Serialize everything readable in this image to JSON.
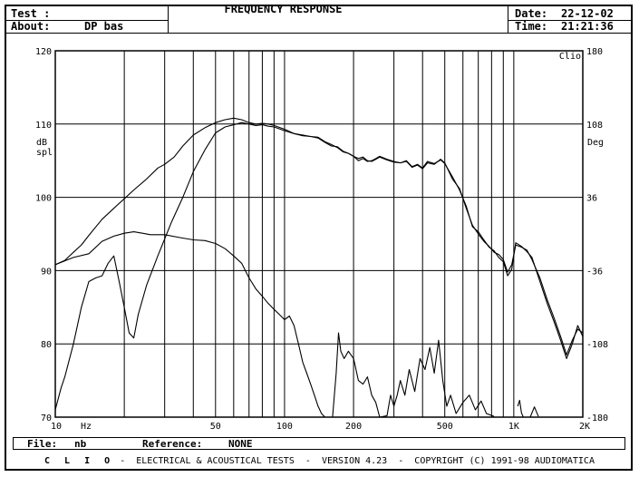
{
  "header": {
    "test_label": "Test :",
    "test_value": "",
    "about_label": "About:",
    "about_value": "DP bas",
    "title": "FREQUENCY RESPONSE",
    "date_label": "Date:",
    "date_value": "22-12-02",
    "time_label": "Time:",
    "time_value": "21:21:36"
  },
  "chart_data": {
    "type": "line",
    "title": "FREQUENCY RESPONSE",
    "x_scale": "log",
    "xlim": [
      10,
      2000
    ],
    "ylim": [
      70,
      120
    ],
    "y2lim": [
      -180,
      180
    ],
    "ylabel": "dB spl",
    "y2label": "Deg",
    "y2_corner_label": "Clio",
    "x_unit_label": "Hz",
    "grid": true,
    "x_tick_labels": [
      {
        "value": 10,
        "label": "10"
      },
      {
        "value": 50,
        "label": "50"
      },
      {
        "value": 100,
        "label": "100"
      },
      {
        "value": 200,
        "label": "200"
      },
      {
        "value": 500,
        "label": "500"
      },
      {
        "value": 1000,
        "label": "1K"
      },
      {
        "value": 2000,
        "label": "2K"
      }
    ],
    "y_tick_labels": [
      "70",
      "80",
      "90",
      "100",
      "110",
      "120"
    ],
    "y2_tick_labels": [
      "-180",
      "-108",
      "-36",
      "36",
      "108",
      "180"
    ],
    "series": [
      {
        "axis": "left",
        "points": [
          [
            10,
            90.8
          ],
          [
            11,
            91.4
          ],
          [
            12,
            92.5
          ],
          [
            13,
            93.5
          ],
          [
            14,
            94.8
          ],
          [
            16,
            97
          ],
          [
            18,
            98.5
          ],
          [
            20,
            99.8
          ],
          [
            22,
            101
          ],
          [
            25,
            102.5
          ],
          [
            28,
            104
          ],
          [
            30,
            104.5
          ],
          [
            33,
            105.5
          ],
          [
            36,
            107
          ],
          [
            40,
            108.5
          ],
          [
            45,
            109.5
          ],
          [
            50,
            110.2
          ],
          [
            55,
            110.6
          ],
          [
            60,
            110.8
          ],
          [
            65,
            110.6
          ],
          [
            70,
            110.2
          ],
          [
            75,
            110
          ],
          [
            80,
            110.1
          ],
          [
            85,
            110
          ],
          [
            90,
            109.8
          ],
          [
            100,
            109.3
          ],
          [
            110,
            108.7
          ],
          [
            120,
            108.4
          ],
          [
            130,
            108.3
          ],
          [
            140,
            108.1
          ],
          [
            150,
            107.5
          ],
          [
            160,
            107
          ],
          [
            170,
            106.9
          ],
          [
            180,
            106.3
          ],
          [
            190,
            106
          ],
          [
            200,
            105.6
          ],
          [
            210,
            105.3
          ],
          [
            220,
            105.5
          ],
          [
            230,
            105
          ],
          [
            240,
            104.9
          ],
          [
            250,
            105.2
          ],
          [
            260,
            105.5
          ],
          [
            280,
            105.1
          ],
          [
            300,
            104.8
          ],
          [
            320,
            104.7
          ],
          [
            340,
            104.9
          ],
          [
            360,
            104.1
          ],
          [
            380,
            104.4
          ],
          [
            400,
            103.9
          ],
          [
            420,
            104.7
          ],
          [
            450,
            104.5
          ],
          [
            480,
            105.2
          ],
          [
            500,
            104.7
          ],
          [
            540,
            102.5
          ],
          [
            580,
            101.2
          ],
          [
            620,
            98.5
          ],
          [
            660,
            96.2
          ],
          [
            700,
            95
          ],
          [
            740,
            94
          ],
          [
            780,
            93.3
          ],
          [
            820,
            92.5
          ],
          [
            860,
            92.2
          ],
          [
            900,
            91.5
          ],
          [
            940,
            89.8
          ],
          [
            980,
            90.8
          ],
          [
            1020,
            93.5
          ],
          [
            1080,
            93.2
          ],
          [
            1140,
            92.8
          ],
          [
            1200,
            91.5
          ],
          [
            1300,
            89
          ],
          [
            1400,
            86
          ],
          [
            1500,
            83.5
          ],
          [
            1600,
            81
          ],
          [
            1700,
            78.5
          ],
          [
            1800,
            80.5
          ],
          [
            1900,
            82
          ],
          [
            2000,
            81.5
          ]
        ]
      },
      {
        "axis": "left",
        "points": [
          [
            10,
            71
          ],
          [
            10.6,
            74
          ],
          [
            11,
            75.5
          ],
          [
            12,
            80
          ],
          [
            13,
            85
          ],
          [
            14,
            88.5
          ],
          [
            15,
            89
          ],
          [
            16,
            89.3
          ],
          [
            17,
            91
          ],
          [
            18,
            92
          ],
          [
            19,
            88.5
          ],
          [
            20,
            85
          ],
          [
            21,
            81.5
          ],
          [
            22,
            80.8
          ],
          [
            23,
            84
          ],
          [
            25,
            88
          ],
          [
            28,
            92
          ],
          [
            32,
            96.5
          ],
          [
            36,
            100
          ],
          [
            40,
            103.5
          ],
          [
            45,
            106.5
          ],
          [
            50,
            108.8
          ],
          [
            55,
            109.6
          ],
          [
            60,
            109.9
          ],
          [
            65,
            110.2
          ],
          [
            70,
            110
          ],
          [
            75,
            109.8
          ],
          [
            80,
            109.9
          ],
          [
            85,
            109.7
          ],
          [
            90,
            109.6
          ],
          [
            100,
            109.1
          ],
          [
            110,
            108.7
          ],
          [
            120,
            108.5
          ],
          [
            130,
            108.3
          ],
          [
            140,
            108.2
          ],
          [
            150,
            107.6
          ],
          [
            160,
            107.2
          ],
          [
            170,
            106.8
          ],
          [
            180,
            106.2
          ],
          [
            190,
            106
          ],
          [
            200,
            105.6
          ],
          [
            210,
            105
          ],
          [
            220,
            105.3
          ],
          [
            230,
            104.9
          ],
          [
            240,
            105
          ],
          [
            250,
            105.3
          ],
          [
            260,
            105.6
          ],
          [
            280,
            105.2
          ],
          [
            300,
            104.9
          ],
          [
            320,
            104.7
          ],
          [
            340,
            105
          ],
          [
            360,
            104.2
          ],
          [
            380,
            104.5
          ],
          [
            400,
            104
          ],
          [
            420,
            104.9
          ],
          [
            450,
            104.6
          ],
          [
            480,
            105.1
          ],
          [
            500,
            104.6
          ],
          [
            540,
            102.8
          ],
          [
            580,
            101
          ],
          [
            620,
            98.8
          ],
          [
            660,
            96
          ],
          [
            700,
            95.3
          ],
          [
            740,
            94.2
          ],
          [
            780,
            93.2
          ],
          [
            820,
            92.7
          ],
          [
            860,
            91.8
          ],
          [
            900,
            91.2
          ],
          [
            940,
            89.3
          ],
          [
            980,
            90.2
          ],
          [
            1020,
            93.8
          ],
          [
            1080,
            93.3
          ],
          [
            1140,
            92.6
          ],
          [
            1200,
            91.8
          ],
          [
            1300,
            88.5
          ],
          [
            1400,
            85.5
          ],
          [
            1500,
            83
          ],
          [
            1600,
            80.5
          ],
          [
            1700,
            78
          ],
          [
            1800,
            80
          ],
          [
            1900,
            82.5
          ],
          [
            2000,
            81
          ]
        ]
      },
      {
        "axis": "left",
        "points": [
          [
            10,
            90.8
          ],
          [
            12,
            91.8
          ],
          [
            14,
            92.3
          ],
          [
            16,
            94
          ],
          [
            18,
            94.7
          ],
          [
            20,
            95.1
          ],
          [
            22,
            95.3
          ],
          [
            24,
            95.1
          ],
          [
            26,
            94.9
          ],
          [
            30,
            94.9
          ],
          [
            35,
            94.5
          ],
          [
            40,
            94.2
          ],
          [
            45,
            94.1
          ],
          [
            50,
            93.7
          ],
          [
            55,
            93
          ],
          [
            60,
            92
          ],
          [
            65,
            91
          ],
          [
            70,
            89
          ],
          [
            75,
            87.5
          ],
          [
            80,
            86.5
          ],
          [
            85,
            85.5
          ],
          [
            90,
            84.7
          ],
          [
            95,
            84
          ],
          [
            100,
            83.3
          ],
          [
            105,
            83.8
          ],
          [
            110,
            82.5
          ],
          [
            115,
            80
          ],
          [
            120,
            77.5
          ],
          [
            125,
            76
          ],
          [
            130,
            74.5
          ],
          [
            135,
            73
          ],
          [
            140,
            71.5
          ],
          [
            145,
            70.5
          ],
          [
            150,
            70
          ]
        ]
      },
      {
        "axis": "left",
        "points": [
          [
            162,
            70
          ],
          [
            168,
            76
          ],
          [
            172,
            81.5
          ],
          [
            176,
            79
          ],
          [
            182,
            78
          ],
          [
            190,
            79
          ],
          [
            200,
            78
          ],
          [
            210,
            75
          ],
          [
            220,
            74.5
          ],
          [
            230,
            75.5
          ],
          [
            240,
            73
          ],
          [
            250,
            72
          ],
          [
            260,
            70
          ],
          [
            280,
            70.2
          ],
          [
            290,
            73
          ],
          [
            300,
            71.5
          ],
          [
            310,
            73
          ],
          [
            320,
            75
          ],
          [
            335,
            73
          ],
          [
            350,
            76.5
          ],
          [
            370,
            73.5
          ],
          [
            390,
            78
          ],
          [
            410,
            76.5
          ],
          [
            430,
            79.5
          ],
          [
            450,
            76
          ],
          [
            470,
            80.5
          ],
          [
            490,
            75
          ],
          [
            510,
            71.5
          ],
          [
            530,
            73
          ],
          [
            560,
            70.5
          ],
          [
            600,
            72
          ],
          [
            640,
            73
          ],
          [
            680,
            71
          ],
          [
            720,
            72.2
          ],
          [
            760,
            70.5
          ],
          [
            820,
            70.1
          ]
        ]
      },
      {
        "axis": "left",
        "points": [
          [
            1040,
            71.5
          ],
          [
            1060,
            72.3
          ],
          [
            1080,
            70.6
          ],
          [
            1100,
            70
          ]
        ]
      },
      {
        "axis": "left",
        "points": [
          [
            1180,
            70
          ],
          [
            1230,
            71.4
          ],
          [
            1280,
            70.1
          ]
        ]
      }
    ]
  },
  "footer": {
    "file_label": "File:",
    "file_value": "nb",
    "reference_label": "Reference:",
    "reference_value": "NONE",
    "brand": "C L I O",
    "copyright": " -  ELECTRICAL & ACOUSTICAL TESTS  -  VERSION 4.23  -  COPYRIGHT (C) 1991-98 AUDIOMATICA"
  }
}
